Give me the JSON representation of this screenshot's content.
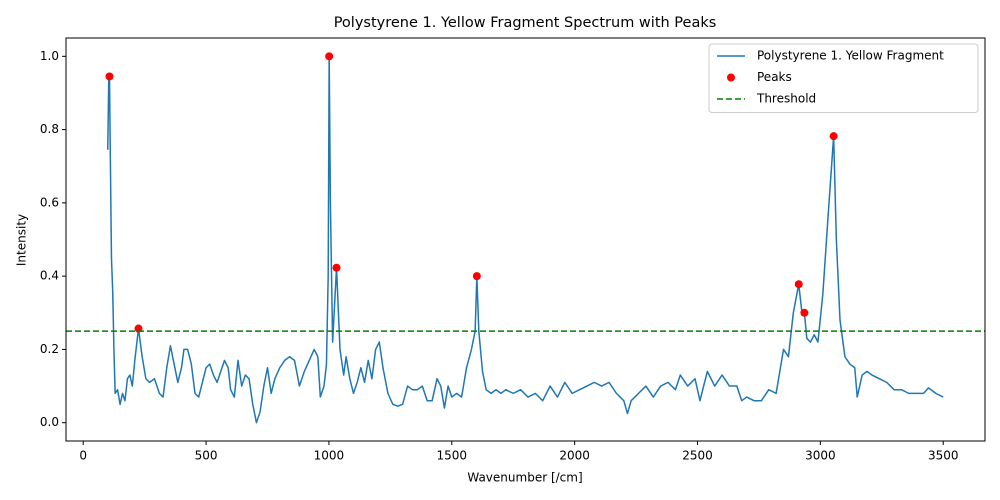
{
  "chart_data": {
    "type": "line",
    "title": "Polystyrene 1. Yellow Fragment Spectrum with Peaks",
    "x_label": "Wavenumber [/cm]",
    "y_label": "Intensity",
    "xlim": [
      -70,
      3670
    ],
    "ylim": [
      -0.05,
      1.05
    ],
    "xticks": [
      0,
      500,
      1000,
      1500,
      2000,
      2500,
      3000,
      3500
    ],
    "yticks": [
      {
        "value": 0,
        "label": "0.0"
      },
      0.2,
      0.4,
      0.6,
      0.8,
      {
        "value": 1,
        "label": "1.0"
      }
    ],
    "grid": false,
    "legend": "upper right",
    "series": [
      {
        "name": "Polystyrene 1. Yellow Fragment",
        "type": "line",
        "color": "#1f77b4",
        "x": [
          100,
          104,
          107,
          110,
          115,
          120,
          125,
          130,
          140,
          150,
          160,
          170,
          180,
          190,
          200,
          210,
          225,
          240,
          255,
          270,
          290,
          310,
          325,
          340,
          355,
          370,
          385,
          400,
          410,
          425,
          440,
          455,
          470,
          485,
          500,
          515,
          530,
          545,
          560,
          575,
          590,
          600,
          615,
          630,
          645,
          660,
          675,
          690,
          705,
          720,
          735,
          750,
          765,
          780,
          800,
          820,
          840,
          860,
          880,
          900,
          920,
          940,
          955,
          965,
          980,
          990,
          997,
          1001,
          1006,
          1015,
          1031,
          1045,
          1060,
          1070,
          1085,
          1100,
          1115,
          1130,
          1145,
          1160,
          1175,
          1190,
          1205,
          1220,
          1240,
          1260,
          1280,
          1300,
          1320,
          1340,
          1360,
          1380,
          1400,
          1420,
          1440,
          1455,
          1470,
          1485,
          1500,
          1520,
          1540,
          1560,
          1580,
          1595,
          1602,
          1610,
          1625,
          1640,
          1660,
          1680,
          1700,
          1720,
          1750,
          1780,
          1810,
          1840,
          1870,
          1900,
          1930,
          1960,
          1990,
          2020,
          2050,
          2080,
          2110,
          2140,
          2170,
          2200,
          2215,
          2230,
          2260,
          2290,
          2320,
          2350,
          2380,
          2410,
          2430,
          2460,
          2490,
          2510,
          2540,
          2570,
          2600,
          2630,
          2660,
          2680,
          2700,
          2730,
          2760,
          2790,
          2820,
          2850,
          2870,
          2890,
          2912,
          2925,
          2935,
          2945,
          2960,
          2975,
          2990,
          3010,
          3030,
          3054,
          3065,
          3080,
          3100,
          3120,
          3140,
          3150,
          3170,
          3190,
          3210,
          3240,
          3270,
          3300,
          3330,
          3360,
          3390,
          3420,
          3440,
          3470,
          3500
        ],
        "values": [
          0.745,
          0.94,
          0.945,
          0.75,
          0.45,
          0.36,
          0.2,
          0.08,
          0.09,
          0.05,
          0.08,
          0.06,
          0.12,
          0.13,
          0.1,
          0.17,
          0.257,
          0.18,
          0.12,
          0.11,
          0.12,
          0.08,
          0.07,
          0.15,
          0.21,
          0.16,
          0.11,
          0.15,
          0.2,
          0.2,
          0.16,
          0.08,
          0.07,
          0.11,
          0.15,
          0.16,
          0.13,
          0.11,
          0.14,
          0.17,
          0.15,
          0.09,
          0.07,
          0.17,
          0.1,
          0.13,
          0.12,
          0.05,
          0.0,
          0.03,
          0.1,
          0.15,
          0.08,
          0.12,
          0.15,
          0.17,
          0.18,
          0.17,
          0.1,
          0.14,
          0.17,
          0.2,
          0.18,
          0.07,
          0.1,
          0.16,
          0.4,
          1.0,
          0.6,
          0.22,
          0.423,
          0.2,
          0.13,
          0.18,
          0.12,
          0.08,
          0.11,
          0.15,
          0.11,
          0.17,
          0.12,
          0.2,
          0.22,
          0.15,
          0.08,
          0.05,
          0.045,
          0.05,
          0.1,
          0.09,
          0.09,
          0.1,
          0.06,
          0.06,
          0.12,
          0.1,
          0.04,
          0.1,
          0.07,
          0.08,
          0.07,
          0.15,
          0.2,
          0.25,
          0.4,
          0.25,
          0.14,
          0.09,
          0.08,
          0.09,
          0.08,
          0.09,
          0.08,
          0.09,
          0.07,
          0.08,
          0.06,
          0.1,
          0.07,
          0.11,
          0.08,
          0.09,
          0.1,
          0.11,
          0.1,
          0.11,
          0.08,
          0.06,
          0.025,
          0.06,
          0.08,
          0.1,
          0.07,
          0.1,
          0.11,
          0.09,
          0.13,
          0.1,
          0.12,
          0.06,
          0.14,
          0.1,
          0.13,
          0.1,
          0.1,
          0.06,
          0.07,
          0.06,
          0.06,
          0.09,
          0.08,
          0.2,
          0.18,
          0.3,
          0.378,
          0.3,
          0.3,
          0.23,
          0.22,
          0.24,
          0.22,
          0.35,
          0.55,
          0.782,
          0.5,
          0.28,
          0.18,
          0.16,
          0.15,
          0.07,
          0.13,
          0.14,
          0.13,
          0.12,
          0.11,
          0.09,
          0.09,
          0.08,
          0.08,
          0.08,
          0.095,
          0.08,
          0.07
        ]
      },
      {
        "name": "Peaks",
        "type": "scatter",
        "color": "#ff0000",
        "x": [
          107,
          225,
          1001,
          1031,
          1602,
          2912,
          2935,
          3054
        ],
        "values": [
          0.945,
          0.257,
          1.0,
          0.423,
          0.4,
          0.378,
          0.3,
          0.782
        ]
      },
      {
        "name": "Threshold",
        "type": "hline",
        "color": "#008000",
        "linestyle": "dashed",
        "value": 0.25
      }
    ]
  }
}
